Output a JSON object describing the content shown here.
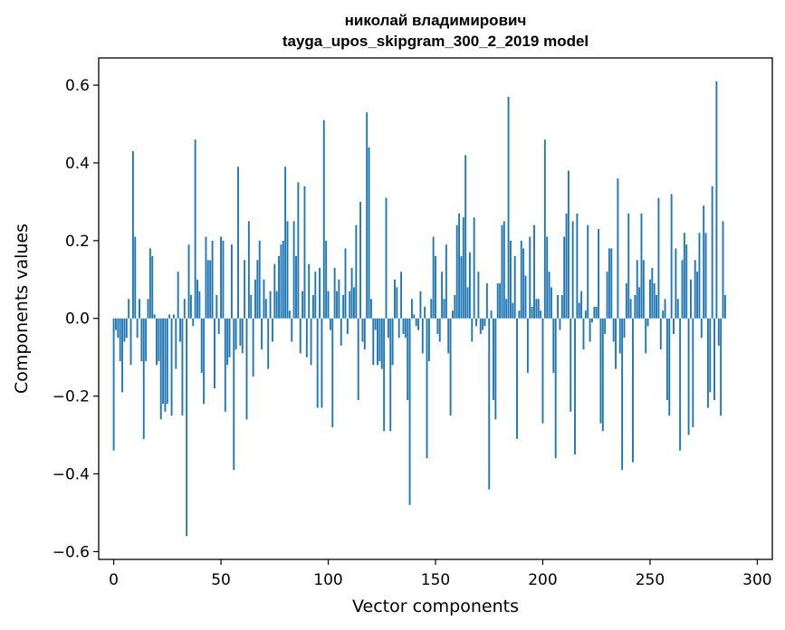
{
  "chart_data": {
    "type": "bar",
    "title_line1": "николай владимирович",
    "title_line2": "tayga_upos_skipgram_300_2_2019 model",
    "xlabel": "Vector components",
    "ylabel": "Components values",
    "xlim": [
      -7,
      307
    ],
    "ylim": [
      -0.62,
      0.67
    ],
    "xticks": [
      0,
      50,
      100,
      150,
      200,
      250,
      300
    ],
    "yticks": [
      -0.6,
      -0.4,
      -0.2,
      0.0,
      0.2,
      0.4,
      0.6
    ],
    "xtick_labels": [
      "0",
      "50",
      "100",
      "150",
      "200",
      "250",
      "300"
    ],
    "ytick_labels": [
      "−0.6",
      "−0.4",
      "−0.2",
      "0.0",
      "0.2",
      "0.4",
      "0.6"
    ],
    "bar_color": "#1f77b4",
    "values": [
      -0.34,
      -0.03,
      -0.05,
      -0.11,
      -0.19,
      -0.06,
      -0.05,
      0.05,
      -0.12,
      0.43,
      0.21,
      -0.05,
      0.05,
      -0.11,
      -0.31,
      -0.11,
      0.05,
      0.18,
      0.16,
      0.01,
      -0.12,
      -0.11,
      -0.26,
      -0.22,
      -0.24,
      -0.22,
      0.01,
      -0.25,
      0.01,
      -0.13,
      0.12,
      -0.06,
      -0.25,
      0.05,
      -0.56,
      0.19,
      0.06,
      -0.02,
      0.46,
      0.1,
      0.07,
      -0.14,
      -0.22,
      0.21,
      0.15,
      0.15,
      0.2,
      -0.18,
      0.06,
      -0.04,
      0.21,
      0.2,
      -0.24,
      -0.12,
      -0.1,
      0.19,
      -0.39,
      -0.08,
      0.39,
      -0.07,
      -0.09,
      0.15,
      -0.26,
      0.25,
      0.06,
      -0.15,
      0.1,
      0.15,
      0.2,
      -0.08,
      0.1,
      0.05,
      -0.13,
      0.07,
      -0.06,
      0.14,
      0.07,
      0.16,
      0.19,
      0.2,
      0.39,
      0.25,
      0.02,
      -0.06,
      0.25,
      0.16,
      0.35,
      -0.09,
      0.07,
      0.34,
      -0.1,
      0.14,
      -0.12,
      0.06,
      0.12,
      -0.23,
      0.13,
      -0.23,
      0.51,
      0.2,
      0.07,
      -0.03,
      -0.28,
      0.13,
      0.07,
      0.1,
      -0.07,
      0.06,
      0.18,
      -0.04,
      0.07,
      0.13,
      0.08,
      0.24,
      -0.21,
      0.3,
      -0.06,
      -0.08,
      0.53,
      0.44,
      0.05,
      -0.12,
      -0.03,
      -0.12,
      -0.11,
      -0.13,
      -0.29,
      0.31,
      -0.05,
      -0.29,
      -0.12,
      0.1,
      0.08,
      -0.05,
      0.12,
      -0.04,
      -0.05,
      -0.21,
      -0.48,
      0.05,
      0.01,
      -0.02,
      -0.03,
      0.07,
      -0.09,
      0.03,
      -0.36,
      -0.11,
      0.05,
      0.21,
      0.16,
      -0.04,
      -0.06,
      0.12,
      0.05,
      0.19,
      -0.09,
      -0.25,
      0.02,
      0.06,
      0.24,
      0.27,
      0.16,
      0.26,
      0.42,
      0.08,
      0.17,
      -0.06,
      0.26,
      -0.02,
      0.12,
      -0.04,
      -0.03,
      -0.02,
      0.09,
      -0.44,
      0.02,
      -0.21,
      -0.26,
      0.09,
      0.09,
      0.24,
      0.25,
      0.05,
      0.57,
      0.2,
      0.04,
      0.16,
      -0.31,
      0.02,
      0.2,
      0.18,
      0.11,
      -0.14,
      0.21,
      0.03,
      0.24,
      0.05,
      0.05,
      0.02,
      -0.27,
      0.46,
      0.21,
      0.12,
      0.08,
      -0.14,
      -0.36,
      0.06,
      -0.03,
      0.06,
      0.21,
      0.27,
      0.38,
      -0.24,
      0.25,
      -0.35,
      0.27,
      0.04,
      0.07,
      -0.08,
      0.02,
      0.24,
      -0.06,
      -0.01,
      0.03,
      0.03,
      0.23,
      -0.27,
      -0.29,
      -0.04,
      0.12,
      0.18,
      0.18,
      -0.06,
      -0.13,
      0.36,
      -0.09,
      -0.39,
      -0.05,
      0.09,
      0.27,
      0.05,
      -0.37,
      0.06,
      0.15,
      0.08,
      0.27,
      0.15,
      -0.09,
      -0.02,
      0.1,
      0.13,
      0.09,
      0.06,
      0.31,
      -0.08,
      0.02,
      0.05,
      -0.21,
      -0.25,
      0.32,
      -0.04,
      0.18,
      0.05,
      -0.34,
      0.15,
      0.22,
      0.19,
      -0.3,
      0.1,
      -0.28,
      0.15,
      0.12,
      0.22,
      -0.05,
      0.29,
      0.22,
      -0.23,
      -0.19,
      0.34,
      -0.21,
      0.61,
      -0.07,
      -0.25,
      0.25,
      0.06
    ]
  }
}
